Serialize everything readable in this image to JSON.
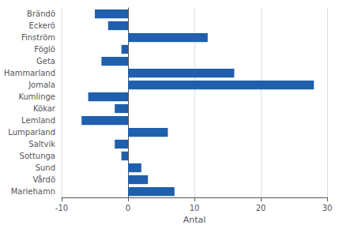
{
  "chart_data": {
    "type": "bar",
    "orientation": "horizontal",
    "categories": [
      "Brändö",
      "Eckerö",
      "Finström",
      "Föglö",
      "Geta",
      "Hammarland",
      "Jomala",
      "Kumlinge",
      "Kökar",
      "Lemland",
      "Lumparland",
      "Saltvik",
      "Sottunga",
      "Sund",
      "Vårdö",
      "Mariehamn"
    ],
    "values": [
      -5,
      -3,
      12,
      -1,
      -4,
      16,
      28,
      -6,
      -2,
      -7,
      6,
      -2,
      -1,
      2,
      3,
      7
    ],
    "color": "#1F5FAD",
    "xlabel": "Antal",
    "xlim": [
      -10,
      30
    ],
    "xticks": [
      -10,
      0,
      10,
      20,
      30
    ],
    "grid": true
  }
}
